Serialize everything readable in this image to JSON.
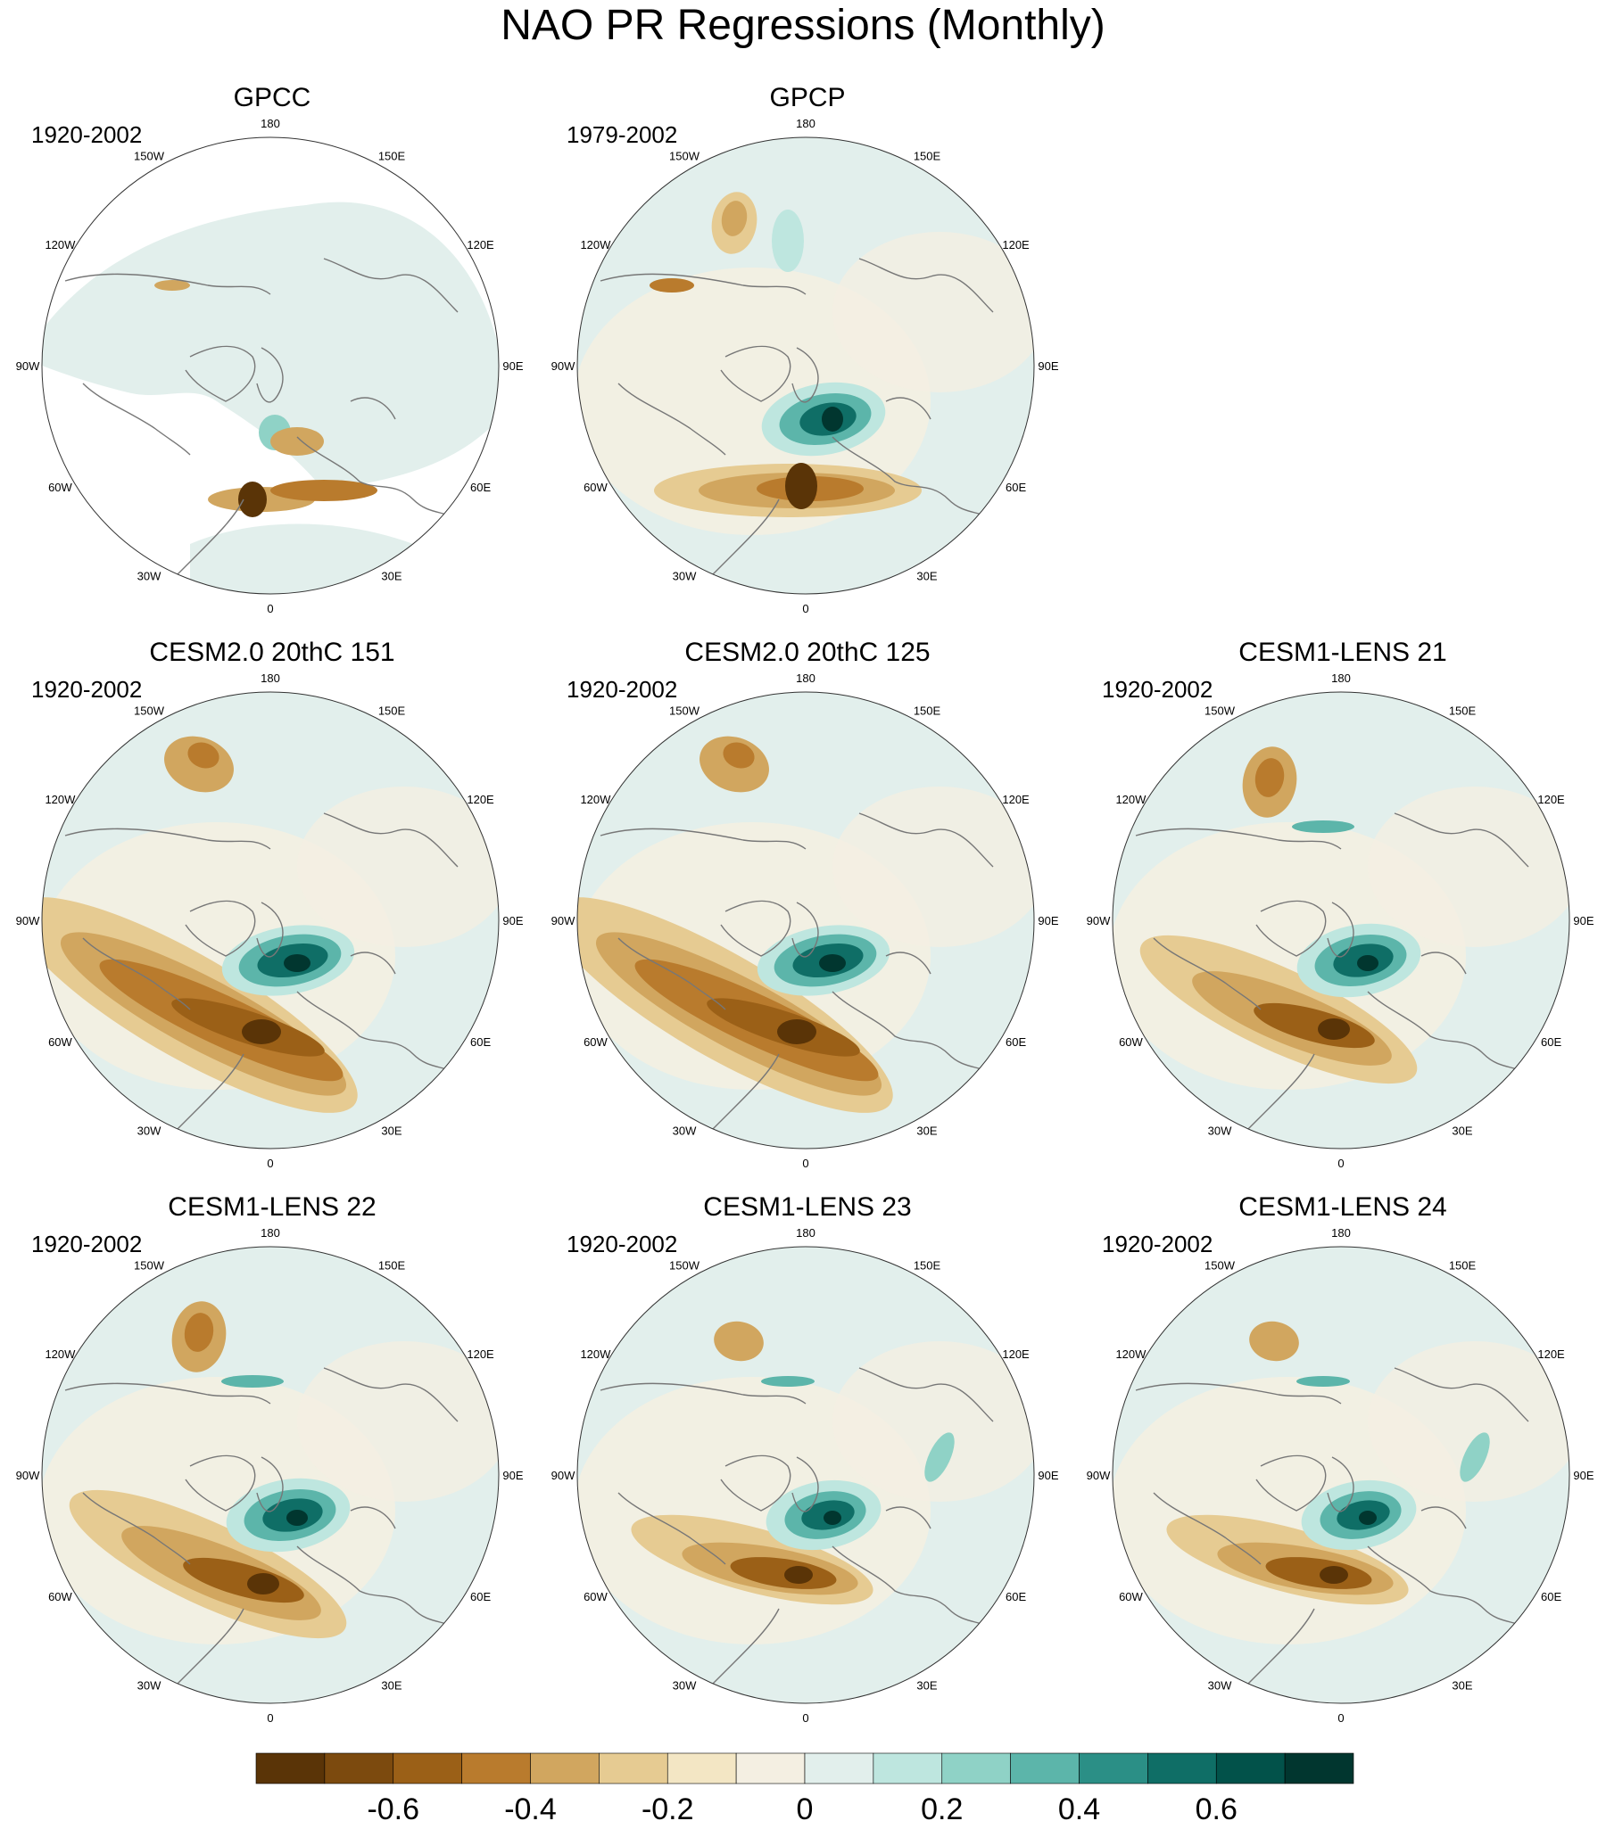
{
  "title": "NAO PR Regressions (Monthly)",
  "longitude_labels": [
    "180",
    "150E",
    "120E",
    "90E",
    "60E",
    "30E",
    "0",
    "30W",
    "60W",
    "90W",
    "120W",
    "150W"
  ],
  "panels": [
    {
      "title": "GPCC",
      "period": "1920-2002",
      "pattern": "gpcc"
    },
    {
      "title": "GPCP",
      "period": "1979-2002",
      "pattern": "gpcp"
    },
    {
      "title": "CESM2.0 20thC 151",
      "period": "1920-2002",
      "pattern": "strong"
    },
    {
      "title": "CESM2.0 20thC 125",
      "period": "1920-2002",
      "pattern": "strong"
    },
    {
      "title": "CESM1-LENS 21",
      "period": "1920-2002",
      "pattern": "medium"
    },
    {
      "title": "CESM1-LENS 22",
      "period": "1920-2002",
      "pattern": "medium"
    },
    {
      "title": "CESM1-LENS 23",
      "period": "1920-2002",
      "pattern": "weak"
    },
    {
      "title": "CESM1-LENS 24",
      "period": "1920-2002",
      "pattern": "weak"
    }
  ],
  "colorbar": {
    "tick_labels": [
      "-0.6",
      "-0.4",
      "-0.2",
      "0",
      "0.2",
      "0.4",
      "0.6"
    ],
    "colors": [
      "#5a3407",
      "#7c4a0e",
      "#9b6017",
      "#b97b2d",
      "#d1a65f",
      "#e6cb92",
      "#f3e6c4",
      "#f4efe2",
      "#e2efec",
      "#bee6df",
      "#8fd2c6",
      "#5cb5aa",
      "#2b8f86",
      "#0f6e66",
      "#02524a",
      "#01362f"
    ]
  }
}
